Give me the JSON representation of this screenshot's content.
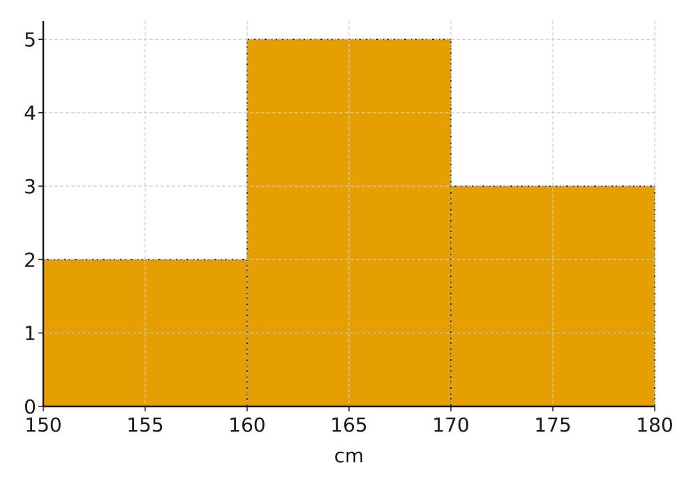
{
  "chart_data": {
    "type": "histogram",
    "title": "",
    "xlabel": "cm",
    "ylabel": "",
    "bins": [
      [
        150,
        160
      ],
      [
        160,
        170
      ],
      [
        170,
        180
      ]
    ],
    "values": [
      2,
      5,
      3
    ],
    "xlim": [
      150,
      180
    ],
    "ylim": [
      0,
      5.25
    ],
    "xticks": [
      150,
      155,
      160,
      165,
      170,
      175,
      180
    ],
    "yticks": [
      0,
      1,
      2,
      3,
      4,
      5
    ],
    "grid": true,
    "bar_color": "#E69F00",
    "edge_color": "#1a1a1a",
    "grid_color": "#cccccc"
  }
}
